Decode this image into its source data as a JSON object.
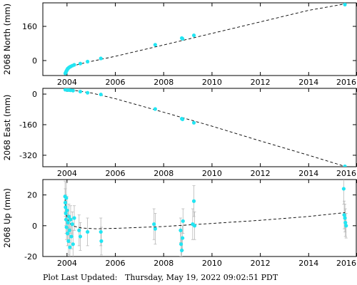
{
  "footer": {
    "label": "Plot Last Updated:",
    "timestamp": "Thursday, May 19, 2022 09:02:51 PDT"
  },
  "colors": {
    "marker": "#22e5f2",
    "error_bar": "#b8b8b8",
    "trend_line": "#000000",
    "axes": "#000000"
  },
  "chart_data": [
    {
      "type": "scatter",
      "ylabel": "2068 North (mm)",
      "xlim": [
        2003.0,
        2016.0
      ],
      "ylim": [
        -70,
        270
      ],
      "xticks": [
        2004,
        2006,
        2008,
        2010,
        2012,
        2014,
        2016
      ],
      "xtick_labels": [
        "2004",
        "2006",
        "2008",
        "2010",
        "2012",
        "2014",
        "2016"
      ],
      "yticks": [
        0,
        160
      ],
      "ytick_labels": [
        "0",
        "160"
      ],
      "points": [
        {
          "x": 2003.93,
          "y": -60
        },
        {
          "x": 2003.95,
          "y": -55
        },
        {
          "x": 2003.97,
          "y": -50
        },
        {
          "x": 2003.99,
          "y": -46
        },
        {
          "x": 2004.01,
          "y": -42
        },
        {
          "x": 2004.03,
          "y": -38
        },
        {
          "x": 2004.06,
          "y": -35
        },
        {
          "x": 2004.1,
          "y": -31
        },
        {
          "x": 2004.15,
          "y": -28
        },
        {
          "x": 2004.22,
          "y": -24
        },
        {
          "x": 2004.3,
          "y": -20
        },
        {
          "x": 2004.55,
          "y": -14
        },
        {
          "x": 2004.85,
          "y": -5
        },
        {
          "x": 2005.4,
          "y": 10
        },
        {
          "x": 2007.65,
          "y": 74
        },
        {
          "x": 2008.75,
          "y": 105
        },
        {
          "x": 2008.78,
          "y": 102
        },
        {
          "x": 2009.25,
          "y": 118
        },
        {
          "x": 2015.5,
          "y": 262
        }
      ],
      "trend": [
        {
          "x": 2003.93,
          "y": -62
        },
        {
          "x": 2004.0,
          "y": -47
        },
        {
          "x": 2004.1,
          "y": -35
        },
        {
          "x": 2004.25,
          "y": -26
        },
        {
          "x": 2004.5,
          "y": -17
        },
        {
          "x": 2005.0,
          "y": -4
        },
        {
          "x": 2006.0,
          "y": 20
        },
        {
          "x": 2008.0,
          "y": 73
        },
        {
          "x": 2010.0,
          "y": 127
        },
        {
          "x": 2012.0,
          "y": 181
        },
        {
          "x": 2014.0,
          "y": 235
        },
        {
          "x": 2015.5,
          "y": 265
        }
      ]
    },
    {
      "type": "scatter",
      "ylabel": "2068 East (mm)",
      "xlim": [
        2003.0,
        2016.0
      ],
      "ylim": [
        -380,
        30
      ],
      "xticks": [
        2004,
        2006,
        2008,
        2010,
        2012,
        2014,
        2016
      ],
      "xtick_labels": [
        "2004",
        "2006",
        "2008",
        "2010",
        "2012",
        "2014",
        "2016"
      ],
      "yticks": [
        0,
        -160,
        -320
      ],
      "ytick_labels": [
        "0",
        "-160",
        "-320"
      ],
      "points": [
        {
          "x": 2003.93,
          "y": 23
        },
        {
          "x": 2003.98,
          "y": 24
        },
        {
          "x": 2004.02,
          "y": 22
        },
        {
          "x": 2004.08,
          "y": 21
        },
        {
          "x": 2004.15,
          "y": 20
        },
        {
          "x": 2004.25,
          "y": 18
        },
        {
          "x": 2004.55,
          "y": 13
        },
        {
          "x": 2004.85,
          "y": 7
        },
        {
          "x": 2005.4,
          "y": -2
        },
        {
          "x": 2007.65,
          "y": -78
        },
        {
          "x": 2008.75,
          "y": -129
        },
        {
          "x": 2008.78,
          "y": -132
        },
        {
          "x": 2009.25,
          "y": -150
        },
        {
          "x": 2015.5,
          "y": -378
        }
      ],
      "trend": [
        {
          "x": 2003.93,
          "y": 24
        },
        {
          "x": 2004.2,
          "y": 21
        },
        {
          "x": 2005.0,
          "y": 6
        },
        {
          "x": 2006.0,
          "y": -24
        },
        {
          "x": 2008.0,
          "y": -95
        },
        {
          "x": 2010.0,
          "y": -168
        },
        {
          "x": 2012.0,
          "y": -245
        },
        {
          "x": 2014.0,
          "y": -320
        },
        {
          "x": 2015.5,
          "y": -378
        }
      ]
    },
    {
      "type": "scatter",
      "ylabel": "2068 Up (mm)",
      "xlim": [
        2003.0,
        2016.0
      ],
      "ylim": [
        -20,
        30
      ],
      "xticks": [
        2004,
        2006,
        2008,
        2010,
        2012,
        2014,
        2016
      ],
      "xtick_labels": [
        "2004",
        "2006",
        "2008",
        "2010",
        "2012",
        "2014",
        "2016"
      ],
      "yticks": [
        -20,
        0,
        20
      ],
      "ytick_labels": [
        "-20",
        "0",
        "20"
      ],
      "points": [
        {
          "x": 2003.92,
          "y": 19,
          "err": 10
        },
        {
          "x": 2003.93,
          "y": 15,
          "err": 9
        },
        {
          "x": 2003.94,
          "y": 12,
          "err": 8
        },
        {
          "x": 2003.95,
          "y": 8,
          "err": 8
        },
        {
          "x": 2003.96,
          "y": 4,
          "err": 9
        },
        {
          "x": 2003.97,
          "y": 18,
          "err": 10
        },
        {
          "x": 2003.98,
          "y": -1,
          "err": 8
        },
        {
          "x": 2004.0,
          "y": 10,
          "err": 9
        },
        {
          "x": 2004.02,
          "y": -5,
          "err": 8
        },
        {
          "x": 2004.04,
          "y": 2,
          "err": 8
        },
        {
          "x": 2004.06,
          "y": -10,
          "err": 9
        },
        {
          "x": 2004.08,
          "y": 6,
          "err": 8
        },
        {
          "x": 2004.1,
          "y": -3,
          "err": 8
        },
        {
          "x": 2004.12,
          "y": -14,
          "err": 8
        },
        {
          "x": 2004.15,
          "y": 4,
          "err": 9
        },
        {
          "x": 2004.18,
          "y": -7,
          "err": 8
        },
        {
          "x": 2004.22,
          "y": 1,
          "err": 8
        },
        {
          "x": 2004.25,
          "y": -12,
          "err": 9
        },
        {
          "x": 2004.3,
          "y": 5,
          "err": 8
        },
        {
          "x": 2004.5,
          "y": -3,
          "err": 10
        },
        {
          "x": 2004.55,
          "y": -7,
          "err": 9
        },
        {
          "x": 2004.85,
          "y": -4,
          "err": 9
        },
        {
          "x": 2005.4,
          "y": -4,
          "err": 9
        },
        {
          "x": 2005.42,
          "y": -10,
          "err": 9
        },
        {
          "x": 2007.6,
          "y": 1,
          "err": 10
        },
        {
          "x": 2007.65,
          "y": -2,
          "err": 10
        },
        {
          "x": 2008.7,
          "y": -3,
          "err": 8
        },
        {
          "x": 2008.72,
          "y": -12,
          "err": 8
        },
        {
          "x": 2008.75,
          "y": -16,
          "err": 7
        },
        {
          "x": 2008.78,
          "y": -8,
          "err": 8
        },
        {
          "x": 2008.8,
          "y": 3,
          "err": 8
        },
        {
          "x": 2009.2,
          "y": 1,
          "err": 10
        },
        {
          "x": 2009.25,
          "y": 16,
          "err": 10
        },
        {
          "x": 2009.28,
          "y": 0,
          "err": 9
        },
        {
          "x": 2015.45,
          "y": 24,
          "err": 10
        },
        {
          "x": 2015.47,
          "y": 7,
          "err": 9
        },
        {
          "x": 2015.5,
          "y": 5,
          "err": 9
        },
        {
          "x": 2015.52,
          "y": 2,
          "err": 9
        },
        {
          "x": 2015.55,
          "y": 0,
          "err": 8
        }
      ],
      "trend": [
        {
          "x": 2003.92,
          "y": 17
        },
        {
          "x": 2003.97,
          "y": 8
        },
        {
          "x": 2004.05,
          "y": 3
        },
        {
          "x": 2004.2,
          "y": 0
        },
        {
          "x": 2004.6,
          "y": -1.5
        },
        {
          "x": 2005.2,
          "y": -2
        },
        {
          "x": 2006.0,
          "y": -1.7
        },
        {
          "x": 2008.0,
          "y": -0.5
        },
        {
          "x": 2010.0,
          "y": 1.5
        },
        {
          "x": 2012.0,
          "y": 3.5
        },
        {
          "x": 2014.0,
          "y": 6
        },
        {
          "x": 2015.5,
          "y": 8.5
        }
      ]
    }
  ]
}
